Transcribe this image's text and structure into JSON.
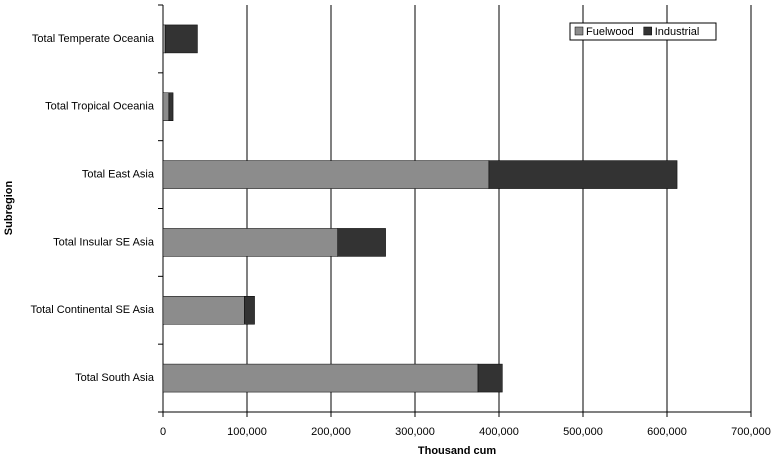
{
  "chart_data": {
    "type": "stacked-bar-horizontal",
    "x_label": "Thousand cum",
    "y_label": "Subregion",
    "categories": [
      "Total Temperate Oceania",
      "Total Tropical Oceania",
      "Total East Asia",
      "Total Insular SE Asia",
      "Total Continental SE Asia",
      "Total South Asia"
    ],
    "series": [
      {
        "name": "Fuelwood",
        "color": "#8c8c8c",
        "values": [
          3000,
          7000,
          388000,
          208000,
          97000,
          375000
        ]
      },
      {
        "name": "Industrial",
        "color": "#333333",
        "values": [
          38000,
          5000,
          224000,
          57000,
          12000,
          29000
        ]
      }
    ],
    "xlim": [
      0,
      700000
    ],
    "xticks": [
      0,
      {
        "value": 100000,
        "label": "100,000"
      },
      {
        "value": 200000,
        "label": "200,000"
      },
      {
        "value": 300000,
        "label": "300,000"
      },
      {
        "value": 400000,
        "label": "400,000"
      },
      {
        "value": 500000,
        "label": "500,000"
      },
      {
        "value": 600000,
        "label": "600,000"
      },
      {
        "value": 700000,
        "label": "700,000"
      }
    ],
    "grid": true,
    "legend": "top-right"
  }
}
